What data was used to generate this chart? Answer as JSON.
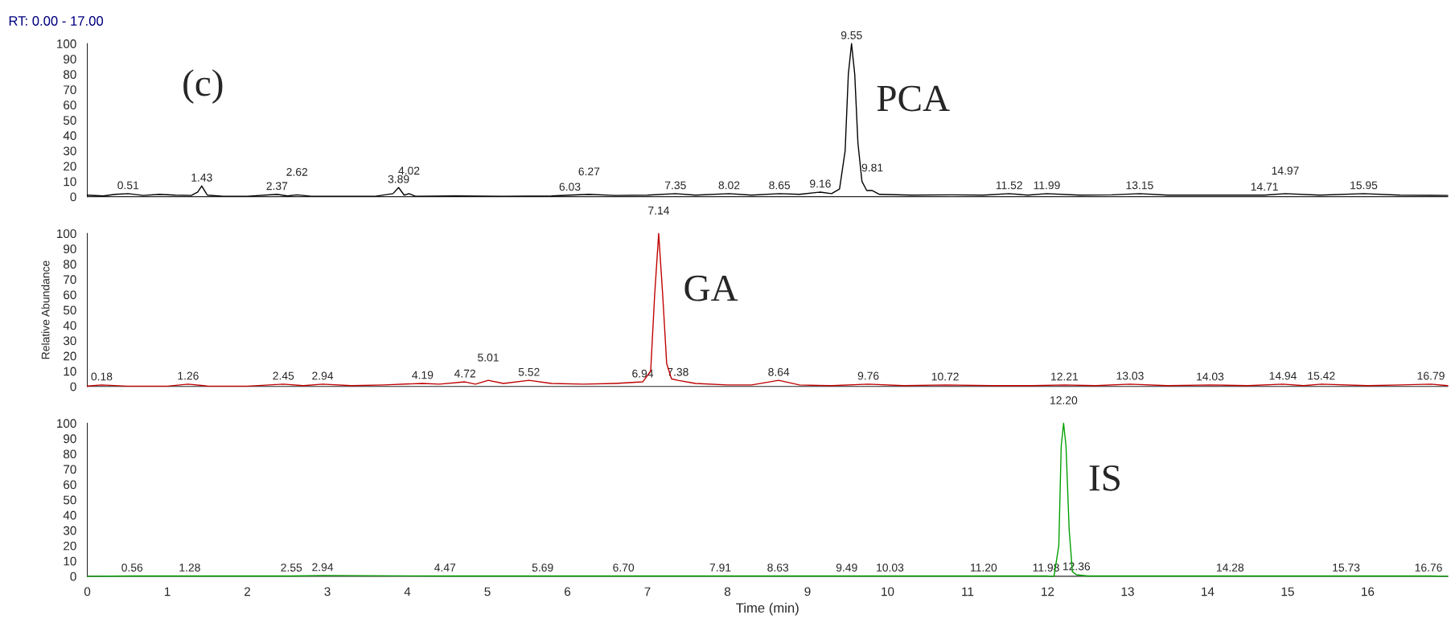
{
  "chart_data": [
    {
      "type": "line",
      "title": "RT: 0.00 - 17.00",
      "xlim": [
        0,
        17
      ],
      "xticks": [
        0,
        1,
        2,
        3,
        4,
        5,
        6,
        7,
        8,
        9,
        10,
        11,
        12,
        13,
        14,
        15,
        16
      ],
      "ylim": [
        0,
        100
      ],
      "yticks": [
        0,
        10,
        20,
        30,
        40,
        50,
        60,
        70,
        80,
        90,
        100
      ],
      "tick_labels": "y",
      "grid": false,
      "legend": false,
      "series": [
        {
          "name": "PCA",
          "color": "#000000",
          "x": [
            0.0,
            0.2,
            0.35,
            0.51,
            0.7,
            0.9,
            1.1,
            1.3,
            1.38,
            1.43,
            1.5,
            1.7,
            2.0,
            2.37,
            2.5,
            2.62,
            2.8,
            3.2,
            3.6,
            3.82,
            3.89,
            3.96,
            4.02,
            4.1,
            4.6,
            5.2,
            5.8,
            6.03,
            6.27,
            6.6,
            7.0,
            7.35,
            7.6,
            8.02,
            8.3,
            8.65,
            8.9,
            9.16,
            9.3,
            9.4,
            9.47,
            9.51,
            9.55,
            9.59,
            9.63,
            9.68,
            9.74,
            9.81,
            9.9,
            10.3,
            10.8,
            11.2,
            11.52,
            11.75,
            11.99,
            12.4,
            12.8,
            13.15,
            13.5,
            14.0,
            14.4,
            14.71,
            14.97,
            15.4,
            15.95,
            16.4,
            17.0
          ],
          "values": [
            1,
            0.5,
            1.5,
            2,
            0.8,
            1.5,
            1,
            0.8,
            3,
            7,
            1,
            0.3,
            0.3,
            1.5,
            0.5,
            1.2,
            0.3,
            0.3,
            0.3,
            2,
            6,
            1,
            2,
            0.3,
            0.5,
            0.3,
            0.5,
            1,
            1.5,
            0.8,
            1,
            2,
            1,
            2,
            1,
            2,
            1.5,
            3,
            2,
            5,
            30,
            80,
            100,
            80,
            35,
            10,
            4,
            4,
            1.5,
            1,
            1.2,
            1,
            2,
            1,
            2,
            1,
            1.2,
            2,
            1,
            1,
            1,
            1,
            2,
            1,
            2,
            1,
            0.8
          ]
        }
      ],
      "annotations": [
        "(c)",
        {
          "text": "0.51",
          "x": 0.51,
          "y": 2
        },
        {
          "text": "1.43",
          "x": 1.43,
          "y": 7
        },
        {
          "text": "2.37",
          "x": 2.37,
          "y": 1.5
        },
        {
          "text": "2.62",
          "x": 2.62,
          "y": 1.2
        },
        {
          "text": "3.89",
          "x": 3.89,
          "y": 6
        },
        {
          "text": "4.02",
          "x": 4.02,
          "y": 2
        },
        {
          "text": "6.03",
          "x": 6.03,
          "y": 1
        },
        {
          "text": "6.27",
          "x": 6.27,
          "y": 1.5
        },
        {
          "text": "7.35",
          "x": 7.35,
          "y": 2
        },
        {
          "text": "8.02",
          "x": 8.02,
          "y": 2
        },
        {
          "text": "8.65",
          "x": 8.65,
          "y": 2
        },
        {
          "text": "9.16",
          "x": 9.16,
          "y": 3
        },
        {
          "text": "9.55",
          "x": 9.55,
          "y": 100
        },
        {
          "text": "9.81",
          "x": 9.81,
          "y": 4
        },
        {
          "text": "11.52",
          "x": 11.52,
          "y": 2
        },
        {
          "text": "11.99",
          "x": 11.99,
          "y": 2
        },
        {
          "text": "13.15",
          "x": 13.15,
          "y": 2
        },
        {
          "text": "14.71",
          "x": 14.71,
          "y": 1
        },
        {
          "text": "14.97",
          "x": 14.97,
          "y": 2
        },
        {
          "text": "15.95",
          "x": 15.95,
          "y": 2
        }
      ]
    },
    {
      "type": "line",
      "ylabel": "Relative Abundance",
      "xlim": [
        0,
        17
      ],
      "xticks": [
        0,
        1,
        2,
        3,
        4,
        5,
        6,
        7,
        8,
        9,
        10,
        11,
        12,
        13,
        14,
        15,
        16
      ],
      "ylim": [
        0,
        100
      ],
      "yticks": [
        0,
        10,
        20,
        30,
        40,
        50,
        60,
        70,
        80,
        90,
        100
      ],
      "tick_labels": "y",
      "grid": false,
      "legend": false,
      "series": [
        {
          "name": "GA",
          "color": "#c00000",
          "x": [
            0.0,
            0.18,
            0.5,
            1.0,
            1.26,
            1.5,
            2.0,
            2.45,
            2.7,
            2.94,
            3.3,
            3.7,
            4.19,
            4.4,
            4.72,
            4.85,
            5.01,
            5.2,
            5.52,
            5.8,
            6.2,
            6.6,
            6.94,
            7.04,
            7.09,
            7.14,
            7.19,
            7.24,
            7.3,
            7.38,
            7.6,
            8.0,
            8.3,
            8.64,
            8.9,
            9.3,
            9.76,
            10.2,
            10.72,
            11.3,
            11.8,
            12.21,
            12.6,
            13.03,
            13.5,
            14.03,
            14.5,
            14.94,
            15.2,
            15.42,
            16.0,
            16.4,
            16.79,
            17.0
          ],
          "values": [
            0.3,
            1,
            0.2,
            0.2,
            1.5,
            0.3,
            0.2,
            1.5,
            0.5,
            1.5,
            0.5,
            1,
            2,
            1.5,
            3,
            1.5,
            4,
            2,
            4,
            2,
            1.5,
            2,
            3,
            10,
            60,
            100,
            60,
            15,
            5,
            4,
            2,
            1,
            1,
            4,
            1,
            0.5,
            1.5,
            0.5,
            1,
            0.5,
            0.5,
            1,
            0.5,
            1.5,
            0.5,
            1,
            0.5,
            1.5,
            0.5,
            1.5,
            0.5,
            1,
            1.5,
            0.5
          ]
        }
      ],
      "annotations": [
        {
          "text": "0.18",
          "x": 0.18,
          "y": 1
        },
        {
          "text": "1.26",
          "x": 1.26,
          "y": 1.5
        },
        {
          "text": "2.45",
          "x": 2.45,
          "y": 1.5
        },
        {
          "text": "2.94",
          "x": 2.94,
          "y": 1.5
        },
        {
          "text": "4.19",
          "x": 4.19,
          "y": 2
        },
        {
          "text": "4.72",
          "x": 4.72,
          "y": 3
        },
        {
          "text": "5.01",
          "x": 5.01,
          "y": 4
        },
        {
          "text": "5.52",
          "x": 5.52,
          "y": 4
        },
        {
          "text": "6.94",
          "x": 6.94,
          "y": 3
        },
        {
          "text": "7.14",
          "x": 7.14,
          "y": 100
        },
        {
          "text": "7.38",
          "x": 7.38,
          "y": 4
        },
        {
          "text": "8.64",
          "x": 8.64,
          "y": 4
        },
        {
          "text": "9.76",
          "x": 9.76,
          "y": 1.5
        },
        {
          "text": "10.72",
          "x": 10.72,
          "y": 1
        },
        {
          "text": "12.21",
          "x": 12.21,
          "y": 1
        },
        {
          "text": "13.03",
          "x": 13.03,
          "y": 1.5
        },
        {
          "text": "14.03",
          "x": 14.03,
          "y": 1
        },
        {
          "text": "14.94",
          "x": 14.94,
          "y": 1.5
        },
        {
          "text": "15.42",
          "x": 15.42,
          "y": 1.5
        },
        {
          "text": "16.79",
          "x": 16.79,
          "y": 1.5
        }
      ]
    },
    {
      "type": "line",
      "xlabel": "Time (min)",
      "xlim": [
        0,
        17
      ],
      "xticks": [
        0,
        1,
        2,
        3,
        4,
        5,
        6,
        7,
        8,
        9,
        10,
        11,
        12,
        13,
        14,
        15,
        16
      ],
      "ylim": [
        0,
        100
      ],
      "yticks": [
        0,
        10,
        20,
        30,
        40,
        50,
        60,
        70,
        80,
        90,
        100
      ],
      "grid": false,
      "legend": false,
      "series": [
        {
          "name": "IS",
          "color": "#00a000",
          "x": [
            0.0,
            0.56,
            1.28,
            2.55,
            2.94,
            4.47,
            5.69,
            6.7,
            7.91,
            8.63,
            9.49,
            10.03,
            11.2,
            11.98,
            12.08,
            12.14,
            12.17,
            12.2,
            12.23,
            12.27,
            12.31,
            12.36,
            12.5,
            14.28,
            15.73,
            16.76,
            17.0
          ],
          "values": [
            0,
            0.2,
            0.2,
            0.2,
            0.5,
            0.2,
            0.2,
            0.2,
            0.2,
            0.2,
            0.2,
            0.2,
            0.2,
            0.2,
            0,
            20,
            85,
            100,
            85,
            30,
            3,
            1,
            0.2,
            0.2,
            0.2,
            0.2,
            0
          ]
        }
      ],
      "annotations": [
        {
          "text": "0.56",
          "x": 0.56,
          "y": 0.2
        },
        {
          "text": "1.28",
          "x": 1.28,
          "y": 0.2
        },
        {
          "text": "2.55",
          "x": 2.55,
          "y": 0.2
        },
        {
          "text": "2.94",
          "x": 2.94,
          "y": 0.5
        },
        {
          "text": "4.47",
          "x": 4.47,
          "y": 0.2
        },
        {
          "text": "5.69",
          "x": 5.69,
          "y": 0.2
        },
        {
          "text": "6.70",
          "x": 6.7,
          "y": 0.2
        },
        {
          "text": "7.91",
          "x": 7.91,
          "y": 0.2
        },
        {
          "text": "8.63",
          "x": 8.63,
          "y": 0.2
        },
        {
          "text": "9.49",
          "x": 9.49,
          "y": 0.2
        },
        {
          "text": "10.03",
          "x": 10.03,
          "y": 0.2
        },
        {
          "text": "11.20",
          "x": 11.2,
          "y": 0.2
        },
        {
          "text": "11.98",
          "x": 11.98,
          "y": 0.2
        },
        {
          "text": "12.20",
          "x": 12.2,
          "y": 100
        },
        {
          "text": "12.36",
          "x": 12.36,
          "y": 1
        },
        {
          "text": "14.28",
          "x": 14.28,
          "y": 0.2
        },
        {
          "text": "15.73",
          "x": 15.73,
          "y": 0.2
        },
        {
          "text": "16.76",
          "x": 16.76,
          "y": 0.2
        }
      ]
    }
  ]
}
